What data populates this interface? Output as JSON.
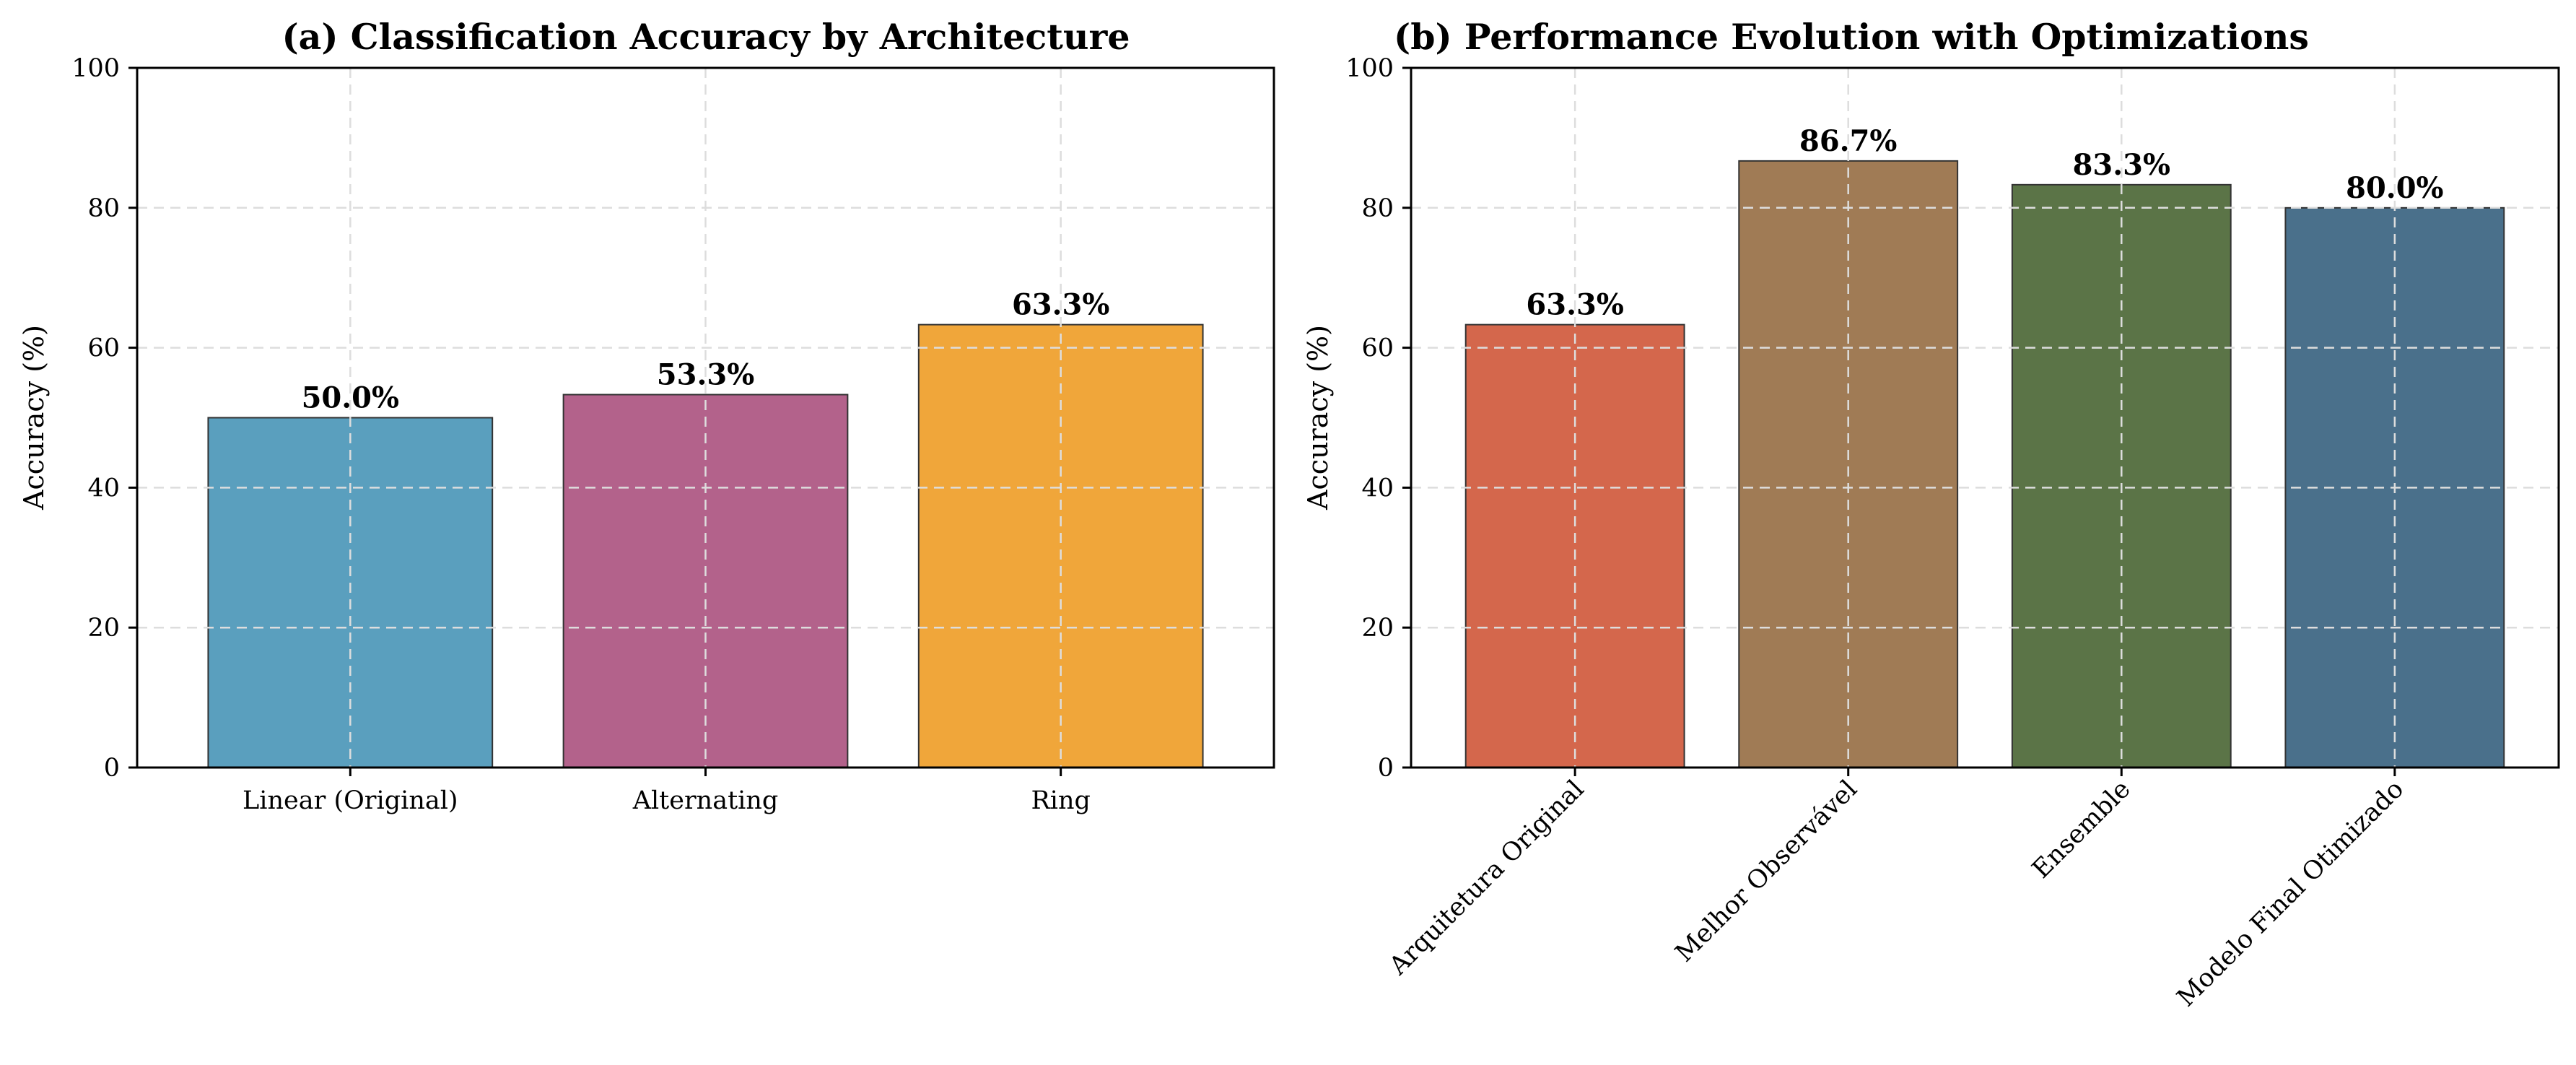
{
  "chart_data": [
    {
      "type": "bar",
      "title": "(a) Classification Accuracy by Architecture",
      "ylabel": "Accuracy (%)",
      "xlabel": "",
      "ylim": [
        0,
        100
      ],
      "yticks": [
        0,
        20,
        40,
        60,
        80,
        100
      ],
      "grid": true,
      "categories": [
        "Linear (Original)",
        "Alternating",
        "Ring"
      ],
      "values": [
        50.0,
        53.3,
        63.3
      ],
      "value_labels": [
        "50.0%",
        "53.3%",
        "63.3%"
      ],
      "colors": [
        "#5a9fbe",
        "#b3628b",
        "#f0a63a"
      ]
    },
    {
      "type": "bar",
      "title": "(b) Performance Evolution with Optimizations",
      "ylabel": "Accuracy (%)",
      "xlabel": "",
      "ylim": [
        0,
        100
      ],
      "yticks": [
        0,
        20,
        40,
        60,
        80,
        100
      ],
      "grid": true,
      "xtick_rotation": 45,
      "categories": [
        "Arquitetura Original",
        "Melhor Observável",
        "Ensemble",
        "Modelo Final Otimizado"
      ],
      "values": [
        63.3,
        86.7,
        83.3,
        80.0
      ],
      "value_labels": [
        "63.3%",
        "86.7%",
        "83.3%",
        "80.0%"
      ],
      "colors": [
        "#d4674c",
        "#a07b55",
        "#5b7447",
        "#4a708b"
      ]
    }
  ]
}
